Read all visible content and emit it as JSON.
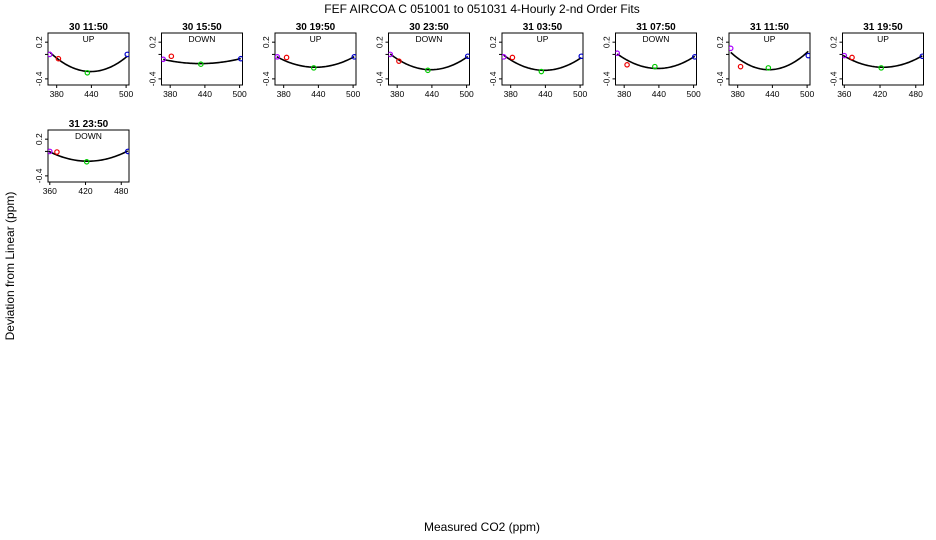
{
  "figure": {
    "title": "FEF   AIRCOA C   051001 to 051031   4-Hourly 2-nd Order Fits",
    "xlabel": "Measured CO2 (ppm)",
    "ylabel": "Deviation from Linear (ppm)"
  },
  "colors": {
    "curve": "#000000",
    "standards": [
      "#aa00ff",
      "#ee0000",
      "#00cc00",
      "#0000cc"
    ]
  },
  "chart_data": [
    {
      "type": "scatter",
      "title": "30 11:50",
      "subtitle": "UP",
      "xlim": [
        365,
        505
      ],
      "ylim": [
        -0.5,
        0.35
      ],
      "xticks": [
        380,
        440,
        500
      ],
      "yticks": [
        0.2,
        0.0,
        -0.4
      ],
      "yticklabels": [
        "0.2",
        "",
        "-0.4"
      ],
      "points": {
        "x": [
          368,
          383,
          433,
          502
        ],
        "y": [
          0.0,
          -0.07,
          -0.3,
          0.0
        ]
      },
      "fit": {
        "xmin": 368,
        "xmax": 502,
        "vertex_x": 439,
        "vertex_y": -0.28
      }
    },
    {
      "type": "scatter",
      "title": "30 15:50",
      "subtitle": "DOWN",
      "xlim": [
        365,
        505
      ],
      "ylim": [
        -0.5,
        0.35
      ],
      "xticks": [
        380,
        440,
        500
      ],
      "yticks": [
        0.2,
        0.0,
        -0.4
      ],
      "yticklabels": [
        "0.2",
        "",
        "-0.4"
      ],
      "points": {
        "x": [
          368,
          382,
          433,
          502
        ],
        "y": [
          -0.08,
          -0.03,
          -0.16,
          -0.07
        ]
      },
      "fit": {
        "xmin": 368,
        "xmax": 502,
        "vertex_x": 432,
        "vertex_y": -0.15
      }
    },
    {
      "type": "scatter",
      "title": "30 19:50",
      "subtitle": "UP",
      "xlim": [
        365,
        505
      ],
      "ylim": [
        -0.5,
        0.35
      ],
      "xticks": [
        380,
        440,
        500
      ],
      "yticks": [
        0.2,
        0.0,
        -0.4
      ],
      "yticklabels": [
        "0.2",
        "",
        "-0.4"
      ],
      "points": {
        "x": [
          369,
          385,
          432,
          502
        ],
        "y": [
          -0.04,
          -0.05,
          -0.22,
          -0.04
        ]
      },
      "fit": {
        "xmin": 368,
        "xmax": 502,
        "vertex_x": 435,
        "vertex_y": -0.21
      }
    },
    {
      "type": "scatter",
      "title": "30 23:50",
      "subtitle": "DOWN",
      "xlim": [
        365,
        505
      ],
      "ylim": [
        -0.5,
        0.35
      ],
      "xticks": [
        380,
        440,
        500
      ],
      "yticks": [
        0.2,
        0.0,
        -0.4
      ],
      "yticklabels": [
        "0.2",
        "",
        "-0.4"
      ],
      "points": {
        "x": [
          368,
          383,
          433,
          502
        ],
        "y": [
          0.0,
          -0.11,
          -0.26,
          -0.03
        ]
      },
      "fit": {
        "xmin": 368,
        "xmax": 502,
        "vertex_x": 438,
        "vertex_y": -0.25
      }
    },
    {
      "type": "scatter",
      "title": "31 03:50",
      "subtitle": "UP",
      "xlim": [
        365,
        505
      ],
      "ylim": [
        -0.5,
        0.35
      ],
      "xticks": [
        380,
        440,
        500
      ],
      "yticks": [
        0.2,
        0.0,
        -0.4
      ],
      "yticklabels": [
        "0.2",
        "",
        "-0.4"
      ],
      "points": {
        "x": [
          368,
          383,
          433,
          502
        ],
        "y": [
          -0.04,
          -0.05,
          -0.28,
          -0.03
        ]
      },
      "fit": {
        "xmin": 368,
        "xmax": 502,
        "vertex_x": 438,
        "vertex_y": -0.26
      }
    },
    {
      "type": "scatter",
      "title": "31 07:50",
      "subtitle": "DOWN",
      "xlim": [
        365,
        505
      ],
      "ylim": [
        -0.5,
        0.35
      ],
      "xticks": [
        380,
        440,
        500
      ],
      "yticks": [
        0.2,
        0.0,
        -0.4
      ],
      "yticklabels": [
        "0.2",
        "",
        "-0.4"
      ],
      "points": {
        "x": [
          368,
          385,
          433,
          502
        ],
        "y": [
          0.02,
          -0.17,
          -0.2,
          -0.04
        ]
      },
      "fit": {
        "xmin": 368,
        "xmax": 502,
        "vertex_x": 438,
        "vertex_y": -0.23
      }
    },
    {
      "type": "scatter",
      "title": "31 11:50",
      "subtitle": "UP",
      "xlim": [
        365,
        505
      ],
      "ylim": [
        -0.5,
        0.35
      ],
      "xticks": [
        380,
        440,
        500
      ],
      "yticks": [
        0.2,
        0.0,
        -0.4
      ],
      "yticklabels": [
        "0.2",
        "",
        "-0.4"
      ],
      "points": {
        "x": [
          368,
          385,
          433,
          502
        ],
        "y": [
          0.1,
          -0.2,
          -0.22,
          -0.02
        ]
      },
      "fit": {
        "xmin": 368,
        "xmax": 502,
        "vertex_x": 434,
        "vertex_y": -0.25
      }
    },
    {
      "type": "scatter",
      "title": "31 19:50",
      "subtitle": "UP",
      "xlim": [
        357,
        493
      ],
      "ylim": [
        -0.5,
        0.35
      ],
      "xticks": [
        360,
        420,
        480
      ],
      "yticks": [
        0.2,
        0.0,
        -0.4
      ],
      "yticklabels": [
        "0.2",
        "",
        "-0.4"
      ],
      "points": {
        "x": [
          360,
          373,
          422,
          491
        ],
        "y": [
          -0.02,
          -0.05,
          -0.22,
          -0.03
        ]
      },
      "fit": {
        "xmin": 358,
        "xmax": 491,
        "vertex_x": 425,
        "vertex_y": -0.21
      }
    },
    {
      "type": "scatter",
      "title": "31 23:50",
      "subtitle": "DOWN",
      "xlim": [
        357,
        493
      ],
      "ylim": [
        -0.5,
        0.35
      ],
      "xticks": [
        360,
        420,
        480
      ],
      "yticks": [
        0.2,
        0.0,
        -0.4
      ],
      "yticklabels": [
        "0.2",
        "",
        "-0.4"
      ],
      "points": {
        "x": [
          360,
          372,
          422,
          491
        ],
        "y": [
          0.0,
          -0.01,
          -0.17,
          0.0
        ]
      },
      "fit": {
        "xmin": 358,
        "xmax": 491,
        "vertex_x": 424,
        "vertex_y": -0.16
      }
    }
  ]
}
